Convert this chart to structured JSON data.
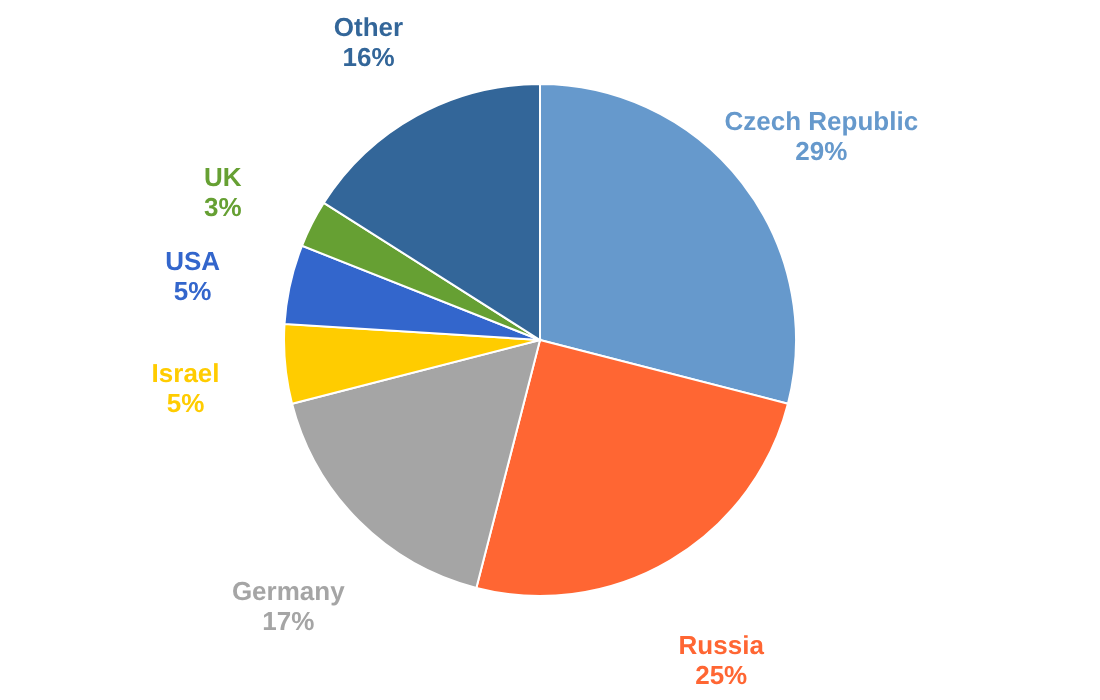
{
  "chart_data": {
    "type": "pie",
    "categories": [
      "Czech Republic",
      "Russia",
      "Germany",
      "Israel",
      "USA",
      "UK",
      "Other"
    ],
    "values": [
      29,
      25,
      17,
      5,
      5,
      3,
      16
    ],
    "value_labels": [
      "29%",
      "25%",
      "17%",
      "5%",
      "5%",
      "3%",
      "16%"
    ],
    "colors": [
      "#6699cc",
      "#ff6633",
      "#a5a5a5",
      "#ffcc00",
      "#3366cc",
      "#66a033",
      "#336699"
    ],
    "legend": false
  }
}
